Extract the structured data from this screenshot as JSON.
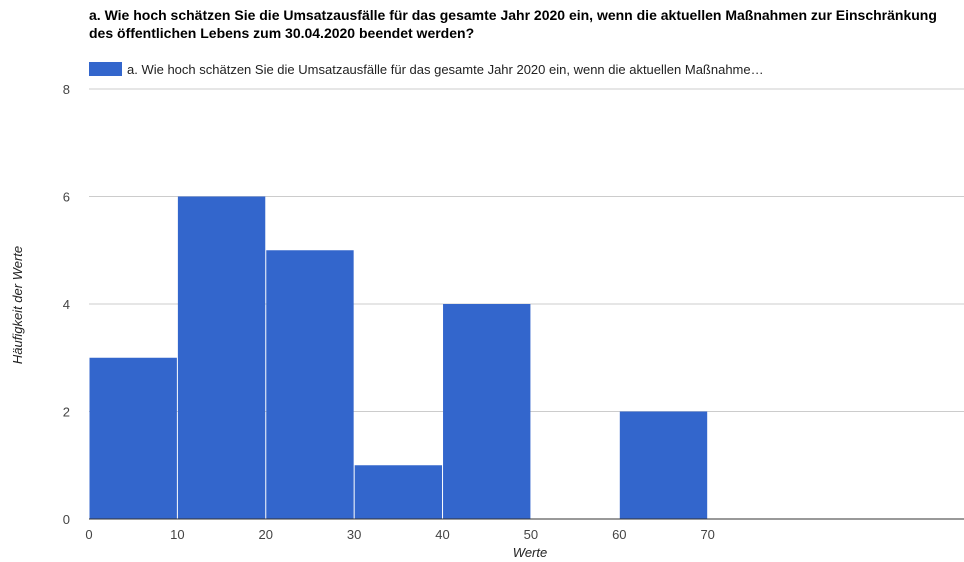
{
  "chart_data": {
    "type": "bar",
    "title": "a. Wie hoch schätzen Sie die Umsatzausfälle für das gesamte Jahr 2020 ein, wenn die aktuellen Maßnahmen zur Einschränkung des öffentlichen Lebens zum 30.04.2020 beendet werden?",
    "legend_label": "a. Wie hoch schätzen Sie die Umsatzausfälle für das gesamte Jahr 2020 ein, wenn die aktuellen Maßnahme…",
    "legend_position": "top-left",
    "xlabel": "Werte",
    "ylabel": "Häufigkeit der Werte",
    "series_color": "#3366cc",
    "grid": true,
    "bins": [
      {
        "from": 0,
        "to": 10,
        "count": 3
      },
      {
        "from": 10,
        "to": 20,
        "count": 6
      },
      {
        "from": 20,
        "to": 30,
        "count": 5
      },
      {
        "from": 30,
        "to": 40,
        "count": 1
      },
      {
        "from": 40,
        "to": 50,
        "count": 4
      },
      {
        "from": 50,
        "to": 60,
        "count": 0
      },
      {
        "from": 60,
        "to": 70,
        "count": 2
      }
    ],
    "x_ticks": [
      0,
      10,
      20,
      30,
      40,
      50,
      60,
      70
    ],
    "y_ticks": [
      0,
      2,
      4,
      6,
      8
    ],
    "ylim": [
      0,
      8
    ],
    "xlim": [
      0,
      99
    ]
  }
}
